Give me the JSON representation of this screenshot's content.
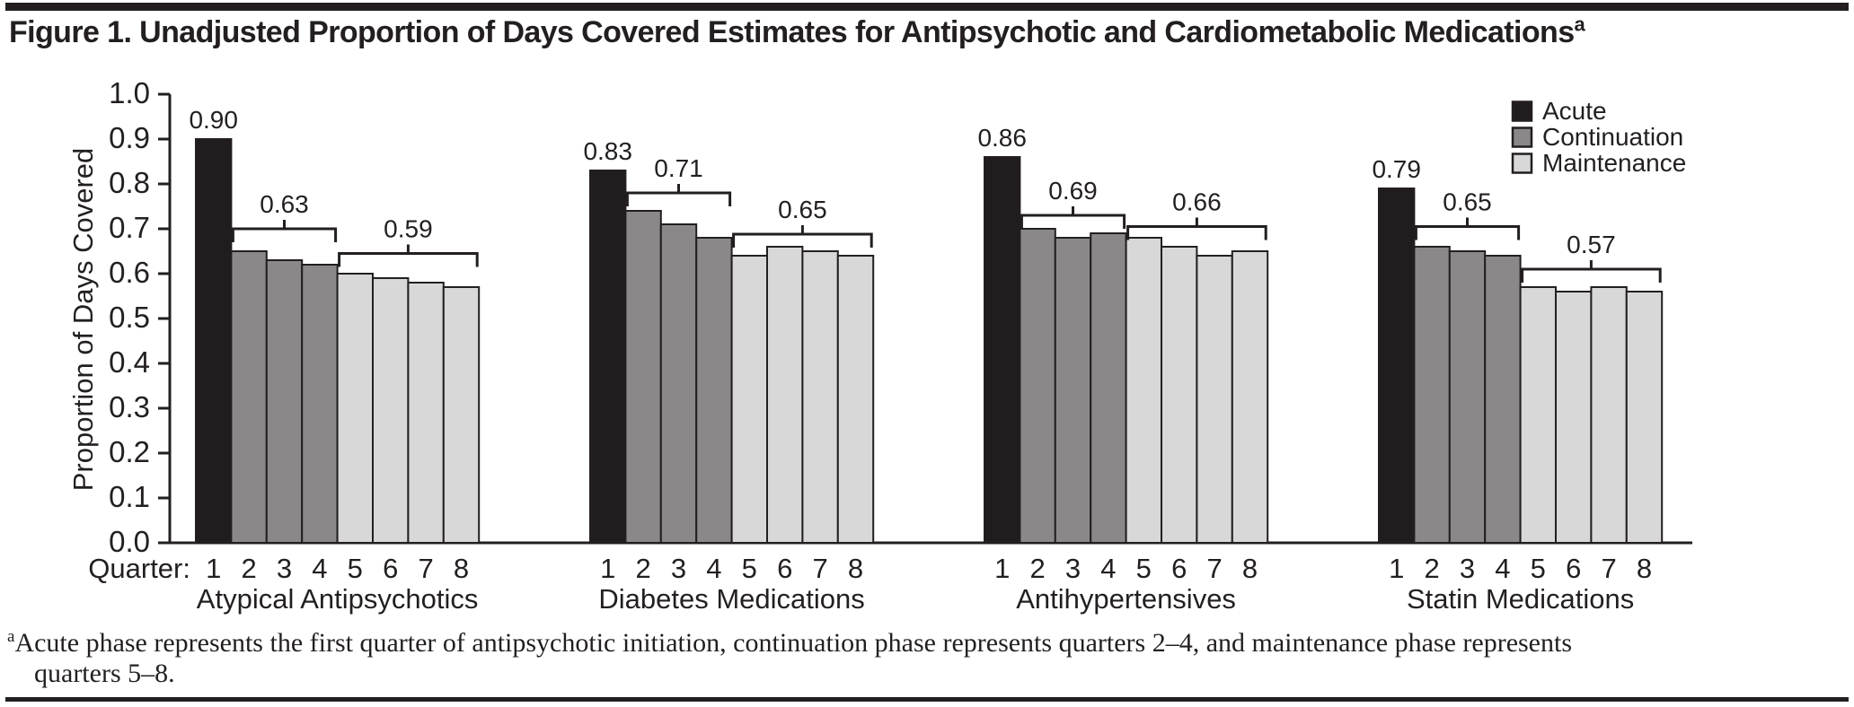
{
  "title": {
    "text": "Figure 1. Unadjusted Proportion of Days Covered Estimates for Antipsychotic and Cardiometabolic Medications",
    "superscript": "a"
  },
  "footnote": {
    "superscript": "a",
    "line1": "Acute phase represents the first quarter of antipsychotic initiation, continuation phase represents quarters 2–4, and maintenance phase represents",
    "line2": "quarters 5–8."
  },
  "colors": {
    "acute": "#211d1e",
    "continuation": "#8a8888",
    "maintenance": "#d8d8d8",
    "outline": "#231f20",
    "text": "#231f20"
  },
  "chart_data": {
    "type": "bar",
    "ylabel": "Proportion of Days Covered",
    "x_axis_prefix": "Quarter:",
    "ylim": [
      0.0,
      1.0
    ],
    "ytick_labels": [
      "0.0",
      "0.1",
      "0.2",
      "0.3",
      "0.4",
      "0.5",
      "0.6",
      "0.7",
      "0.8",
      "0.9",
      "1.0"
    ],
    "grid": false,
    "legend_position": "top-right",
    "legend": [
      {
        "label": "Acute",
        "color_key": "acute"
      },
      {
        "label": "Continuation",
        "color_key": "continuation"
      },
      {
        "label": "Maintenance",
        "color_key": "maintenance"
      }
    ],
    "quarters": [
      "1",
      "2",
      "3",
      "4",
      "5",
      "6",
      "7",
      "8"
    ],
    "phase_of_quarter": [
      "acute",
      "continuation",
      "continuation",
      "continuation",
      "maintenance",
      "maintenance",
      "maintenance",
      "maintenance"
    ],
    "groups": [
      {
        "label": "Atypical Antipsychotics",
        "values": [
          0.9,
          0.65,
          0.63,
          0.62,
          0.6,
          0.59,
          0.58,
          0.57
        ],
        "peak_label": "0.90",
        "brackets": [
          {
            "from": 2,
            "to": 4,
            "label": "0.63",
            "line_value": 0.7
          },
          {
            "from": 5,
            "to": 8,
            "label": "0.59",
            "line_value": 0.645
          }
        ]
      },
      {
        "label": "Diabetes Medications",
        "values": [
          0.83,
          0.74,
          0.71,
          0.68,
          0.64,
          0.66,
          0.65,
          0.64
        ],
        "peak_label": "0.83",
        "brackets": [
          {
            "from": 2,
            "to": 4,
            "label": "0.71",
            "line_value": 0.78
          },
          {
            "from": 5,
            "to": 8,
            "label": "0.65",
            "line_value": 0.688
          }
        ]
      },
      {
        "label": "Antihypertensives",
        "values": [
          0.86,
          0.7,
          0.68,
          0.69,
          0.68,
          0.66,
          0.64,
          0.65
        ],
        "peak_label": "0.86",
        "brackets": [
          {
            "from": 2,
            "to": 4,
            "label": "0.69",
            "line_value": 0.73
          },
          {
            "from": 5,
            "to": 8,
            "label": "0.66",
            "line_value": 0.705
          }
        ]
      },
      {
        "label": "Statin Medications",
        "values": [
          0.79,
          0.66,
          0.65,
          0.64,
          0.57,
          0.56,
          0.57,
          0.56
        ],
        "peak_label": "0.79",
        "brackets": [
          {
            "from": 2,
            "to": 4,
            "label": "0.65",
            "line_value": 0.705
          },
          {
            "from": 5,
            "to": 8,
            "label": "0.57",
            "line_value": 0.61
          }
        ]
      }
    ]
  }
}
